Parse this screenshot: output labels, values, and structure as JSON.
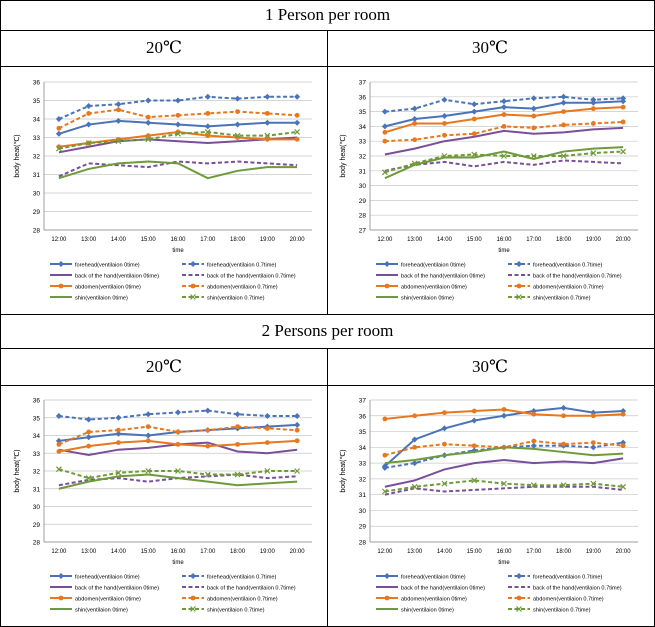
{
  "sections": [
    {
      "title": "1 Person per room",
      "left_title": "20℃",
      "right_title": "30℃"
    },
    {
      "title": "2 Persons per room",
      "left_title": "20℃",
      "right_title": "30℃"
    }
  ],
  "colors": {
    "forehead": "#4a73b8",
    "back_of_hand": "#7a4f9a",
    "abdomen": "#e8771e",
    "shin": "#6f9a3a",
    "grid": "#c8c8c8"
  },
  "chart_data": [
    {
      "type": "line",
      "panel": "1 Person per room / 20℃",
      "categories": [
        "12:00",
        "13:00",
        "14:00",
        "15:00",
        "16:00",
        "17:00",
        "18:00",
        "19:00",
        "20:00"
      ],
      "xlabel": "time",
      "ylabel": "body heat(℃)",
      "ylim": [
        28,
        36
      ],
      "yticks": [
        28,
        29,
        30,
        31,
        32,
        33,
        34,
        35,
        36
      ],
      "legend_position": "bottom",
      "series": [
        {
          "name": "forehead(ventilaion 0time)",
          "values": [
            33.2,
            33.7,
            33.9,
            33.8,
            33.7,
            33.6,
            33.7,
            33.8,
            33.8
          ]
        },
        {
          "name": "forehead(ventilaion 0.7time)",
          "values": [
            34.0,
            34.7,
            34.8,
            35.0,
            35.0,
            35.2,
            35.1,
            35.2,
            35.2
          ]
        },
        {
          "name": "back of the hand(ventilaion 0time)",
          "values": [
            32.2,
            32.5,
            32.8,
            32.9,
            32.8,
            32.7,
            32.8,
            32.9,
            33.0
          ]
        },
        {
          "name": "back of the hand(ventilaion 0.7time)",
          "values": [
            30.9,
            31.6,
            31.5,
            31.4,
            31.7,
            31.6,
            31.7,
            31.6,
            31.5
          ]
        },
        {
          "name": "abdomen(ventilaion 0time)",
          "values": [
            32.5,
            32.7,
            32.9,
            33.1,
            33.3,
            33.1,
            33.0,
            32.9,
            32.9
          ]
        },
        {
          "name": "abdomen(ventilaion 0.7time)",
          "values": [
            33.5,
            34.3,
            34.5,
            34.1,
            34.2,
            34.3,
            34.4,
            34.3,
            34.2
          ]
        },
        {
          "name": "shin(ventilaion 0time)",
          "values": [
            30.8,
            31.3,
            31.6,
            31.7,
            31.6,
            30.8,
            31.2,
            31.4,
            31.4
          ]
        },
        {
          "name": "shin(ventilaion 0.7time)",
          "values": [
            32.4,
            32.7,
            32.8,
            32.9,
            33.2,
            33.3,
            33.1,
            33.1,
            33.3
          ]
        }
      ]
    },
    {
      "type": "line",
      "panel": "1 Person per room / 30℃",
      "categories": [
        "12:00",
        "13:00",
        "14:00",
        "15:00",
        "16:00",
        "17:00",
        "18:00",
        "19:00",
        "20:00"
      ],
      "xlabel": "time",
      "ylabel": "body heat(℃)",
      "ylim": [
        27,
        37
      ],
      "yticks": [
        27,
        28,
        29,
        30,
        31,
        32,
        33,
        34,
        35,
        36,
        37
      ],
      "legend_position": "bottom",
      "series": [
        {
          "name": "forehead(ventilaion 0time)",
          "values": [
            34.0,
            34.5,
            34.7,
            35.0,
            35.3,
            35.2,
            35.6,
            35.6,
            35.7
          ]
        },
        {
          "name": "forehead(ventilaion 0.7time)",
          "values": [
            35.0,
            35.2,
            35.8,
            35.5,
            35.7,
            35.9,
            36.0,
            35.8,
            35.9
          ]
        },
        {
          "name": "back of the hand(ventilaion 0time)",
          "values": [
            32.1,
            32.5,
            33.0,
            33.3,
            33.7,
            33.5,
            33.6,
            33.8,
            33.9
          ]
        },
        {
          "name": "back of the hand(ventilaion 0.7time)",
          "values": [
            31.0,
            31.4,
            31.6,
            31.3,
            31.6,
            31.4,
            31.7,
            31.6,
            31.5
          ]
        },
        {
          "name": "abdomen(ventilaion 0time)",
          "values": [
            33.6,
            34.2,
            34.2,
            34.5,
            34.8,
            34.7,
            35.0,
            35.2,
            35.3
          ]
        },
        {
          "name": "abdomen(ventilaion 0.7time)",
          "values": [
            33.0,
            33.1,
            33.4,
            33.5,
            34.0,
            33.9,
            34.1,
            34.2,
            34.3
          ]
        },
        {
          "name": "shin(ventilaion 0time)",
          "values": [
            30.5,
            31.4,
            31.9,
            31.9,
            32.3,
            31.8,
            32.3,
            32.5,
            32.6
          ]
        },
        {
          "name": "shin(ventilaion 0.7time)",
          "values": [
            30.9,
            31.5,
            32.0,
            32.1,
            32.0,
            32.0,
            32.0,
            32.2,
            32.3
          ]
        }
      ]
    },
    {
      "type": "line",
      "panel": "2 Persons per room / 20℃",
      "categories": [
        "12:00",
        "13:00",
        "14:00",
        "15:00",
        "16:00",
        "17:00",
        "18:00",
        "19:00",
        "20:00"
      ],
      "xlabel": "time",
      "ylabel": "body heat(℃)",
      "ylim": [
        28,
        36
      ],
      "yticks": [
        28,
        29,
        30,
        31,
        32,
        33,
        34,
        35,
        36
      ],
      "legend_position": "bottom",
      "series": [
        {
          "name": "forehead(ventilaion 0time)",
          "values": [
            33.7,
            33.9,
            34.1,
            34.0,
            34.2,
            34.3,
            34.4,
            34.5,
            34.6
          ]
        },
        {
          "name": "forehead(ventilaion 0.7time)",
          "values": [
            35.1,
            34.9,
            35.0,
            35.2,
            35.3,
            35.4,
            35.2,
            35.1,
            35.1
          ]
        },
        {
          "name": "back of the hand(ventilaion 0time)",
          "values": [
            33.2,
            32.9,
            33.2,
            33.3,
            33.5,
            33.6,
            33.1,
            33.0,
            33.2
          ]
        },
        {
          "name": "back of the hand(ventilaion 0.7time)",
          "values": [
            31.2,
            31.5,
            31.6,
            31.4,
            31.6,
            31.7,
            31.8,
            31.6,
            31.7
          ]
        },
        {
          "name": "abdomen(ventilaion 0time)",
          "values": [
            33.1,
            33.4,
            33.6,
            33.7,
            33.5,
            33.4,
            33.5,
            33.6,
            33.7
          ]
        },
        {
          "name": "abdomen(ventilaion 0.7time)",
          "values": [
            33.5,
            34.2,
            34.3,
            34.5,
            34.2,
            34.3,
            34.5,
            34.4,
            34.3
          ]
        },
        {
          "name": "shin(ventilaion 0time)",
          "values": [
            31.0,
            31.4,
            31.7,
            31.8,
            31.6,
            31.4,
            31.2,
            31.3,
            31.4
          ]
        },
        {
          "name": "shin(ventilaion 0.7time)",
          "values": [
            32.1,
            31.6,
            31.9,
            32.0,
            32.0,
            31.8,
            31.8,
            32.0,
            32.0
          ]
        }
      ]
    },
    {
      "type": "line",
      "panel": "2 Persons per room / 30℃",
      "categories": [
        "12:00",
        "13:00",
        "14:00",
        "15:00",
        "16:00",
        "17:00",
        "18:00",
        "19:00",
        "20:00"
      ],
      "xlabel": "time",
      "ylabel": "body heat(℃)",
      "ylim": [
        28,
        37
      ],
      "yticks": [
        28,
        29,
        30,
        31,
        32,
        33,
        34,
        35,
        36,
        37
      ],
      "legend_position": "bottom",
      "series": [
        {
          "name": "forehead(ventilaion 0time)",
          "values": [
            32.8,
            34.5,
            35.2,
            35.7,
            36.0,
            36.3,
            36.5,
            36.2,
            36.3
          ]
        },
        {
          "name": "forehead(ventilaion 0.7time)",
          "values": [
            32.7,
            33.0,
            33.5,
            33.8,
            34.0,
            34.1,
            34.1,
            34.0,
            34.3
          ]
        },
        {
          "name": "back of the hand(ventilaion 0time)",
          "values": [
            31.5,
            31.9,
            32.6,
            33.0,
            33.2,
            33.0,
            33.1,
            33.0,
            33.3
          ]
        },
        {
          "name": "back of the hand(ventilaion 0.7time)",
          "values": [
            31.0,
            31.4,
            31.2,
            31.3,
            31.4,
            31.5,
            31.5,
            31.5,
            31.3
          ]
        },
        {
          "name": "abdomen(ventilaion 0time)",
          "values": [
            35.8,
            36.0,
            36.2,
            36.3,
            36.4,
            36.1,
            36.0,
            36.0,
            36.1
          ]
        },
        {
          "name": "abdomen(ventilaion 0.7time)",
          "values": [
            33.5,
            34.0,
            34.2,
            34.1,
            34.0,
            34.4,
            34.2,
            34.3,
            34.1
          ]
        },
        {
          "name": "shin(ventilaion 0time)",
          "values": [
            33.0,
            33.2,
            33.5,
            33.7,
            34.0,
            33.9,
            33.7,
            33.5,
            33.6
          ]
        },
        {
          "name": "shin(ventilaion 0.7time)",
          "values": [
            31.2,
            31.5,
            31.7,
            31.9,
            31.7,
            31.6,
            31.6,
            31.7,
            31.5
          ]
        }
      ]
    }
  ]
}
